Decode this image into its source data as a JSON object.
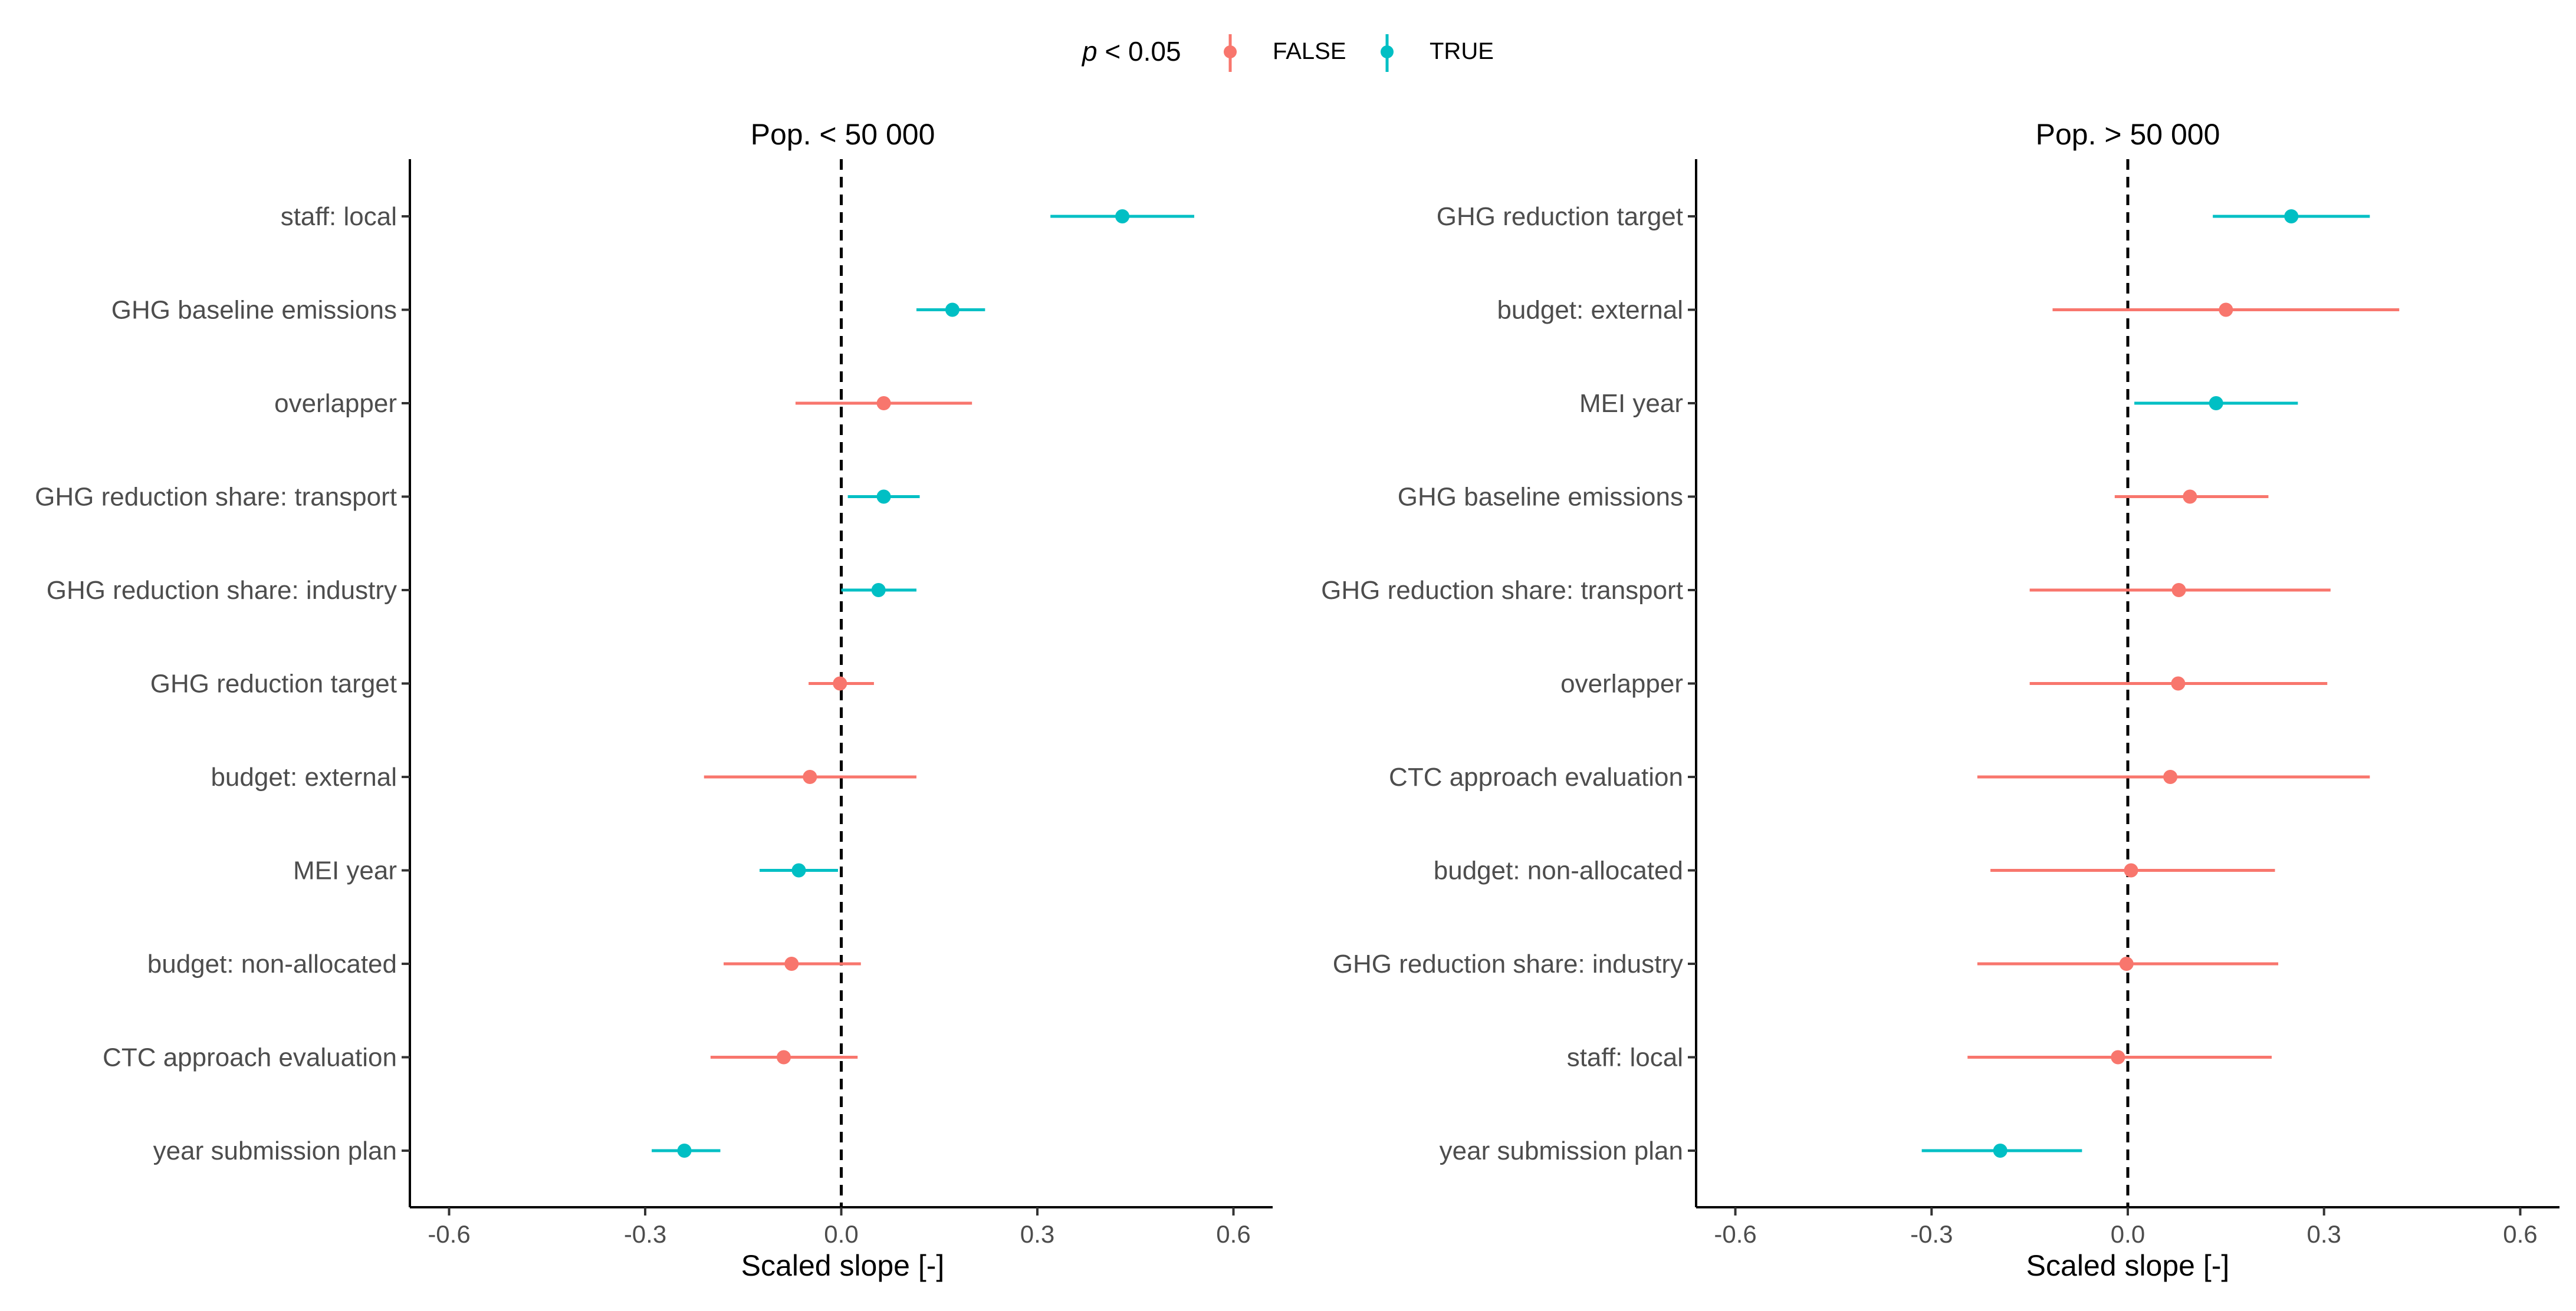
{
  "legend": {
    "title_p": "p",
    "title_rest": " < 0.05",
    "entries": [
      {
        "label": "FALSE",
        "color": "#F8766D"
      },
      {
        "label": "TRUE",
        "color": "#00BFC4"
      }
    ]
  },
  "colors": {
    "false": "#F8766D",
    "true": "#00BFC4",
    "axis": "#000000",
    "text": "#4d4d4d"
  },
  "chart_data": [
    {
      "type": "scatter",
      "subtype": "point-range",
      "title": "Pop. < 50 000",
      "xlabel": "Scaled slope [-]",
      "ylabel": "",
      "xlim": [
        -0.66,
        0.66
      ],
      "xticks": [
        -0.6,
        -0.3,
        0.0,
        0.3,
        0.6
      ],
      "xtick_labels": [
        "-0.6",
        "-0.3",
        "0.0",
        "0.3",
        "0.6"
      ],
      "reference_line": 0,
      "rows": [
        {
          "label": "staff: local",
          "estimate": 0.43,
          "low": 0.32,
          "high": 0.54,
          "significant": true
        },
        {
          "label": "GHG baseline emissions",
          "estimate": 0.17,
          "low": 0.115,
          "high": 0.22,
          "significant": true
        },
        {
          "label": "overlapper",
          "estimate": 0.065,
          "low": -0.07,
          "high": 0.2,
          "significant": false
        },
        {
          "label": "GHG reduction share: transport",
          "estimate": 0.065,
          "low": 0.01,
          "high": 0.12,
          "significant": true
        },
        {
          "label": "GHG reduction share: industry",
          "estimate": 0.057,
          "low": 0.0,
          "high": 0.115,
          "significant": true
        },
        {
          "label": "GHG reduction target",
          "estimate": -0.002,
          "low": -0.05,
          "high": 0.05,
          "significant": false
        },
        {
          "label": "budget: external",
          "estimate": -0.048,
          "low": -0.21,
          "high": 0.115,
          "significant": false
        },
        {
          "label": "MEI year",
          "estimate": -0.065,
          "low": -0.125,
          "high": -0.005,
          "significant": true
        },
        {
          "label": "budget: non-allocated",
          "estimate": -0.076,
          "low": -0.18,
          "high": 0.03,
          "significant": false
        },
        {
          "label": "CTC approach evaluation",
          "estimate": -0.088,
          "low": -0.2,
          "high": 0.025,
          "significant": false
        },
        {
          "label": "year submission plan",
          "estimate": -0.24,
          "low": -0.29,
          "high": -0.185,
          "significant": true
        }
      ]
    },
    {
      "type": "scatter",
      "subtype": "point-range",
      "title": "Pop. > 50 000",
      "xlabel": "Scaled slope [-]",
      "ylabel": "",
      "xlim": [
        -0.66,
        0.66
      ],
      "xticks": [
        -0.6,
        -0.3,
        0.0,
        0.3,
        0.6
      ],
      "xtick_labels": [
        "-0.6",
        "-0.3",
        "0.0",
        "0.3",
        "0.6"
      ],
      "reference_line": 0,
      "rows": [
        {
          "label": "GHG reduction target",
          "estimate": 0.25,
          "low": 0.13,
          "high": 0.37,
          "significant": true
        },
        {
          "label": "budget: external",
          "estimate": 0.15,
          "low": -0.115,
          "high": 0.415,
          "significant": false
        },
        {
          "label": "MEI year",
          "estimate": 0.135,
          "low": 0.01,
          "high": 0.26,
          "significant": true
        },
        {
          "label": "GHG baseline emissions",
          "estimate": 0.095,
          "low": -0.02,
          "high": 0.215,
          "significant": false
        },
        {
          "label": "GHG reduction share: transport",
          "estimate": 0.078,
          "low": -0.15,
          "high": 0.31,
          "significant": false
        },
        {
          "label": "overlapper",
          "estimate": 0.077,
          "low": -0.15,
          "high": 0.305,
          "significant": false
        },
        {
          "label": "CTC approach evaluation",
          "estimate": 0.065,
          "low": -0.23,
          "high": 0.37,
          "significant": false
        },
        {
          "label": "budget: non-allocated",
          "estimate": 0.005,
          "low": -0.21,
          "high": 0.225,
          "significant": false
        },
        {
          "label": "GHG reduction share: industry",
          "estimate": -0.002,
          "low": -0.23,
          "high": 0.23,
          "significant": false
        },
        {
          "label": "staff: local",
          "estimate": -0.015,
          "low": -0.245,
          "high": 0.22,
          "significant": false
        },
        {
          "label": "year submission plan",
          "estimate": -0.195,
          "low": -0.315,
          "high": -0.07,
          "significant": true
        }
      ]
    }
  ]
}
